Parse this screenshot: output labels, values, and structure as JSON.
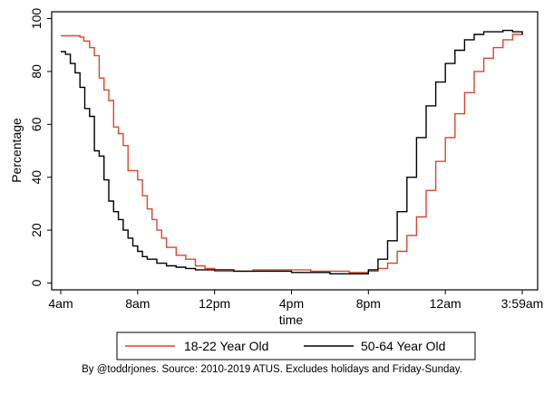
{
  "chart_data": {
    "type": "line",
    "xlabel": "time",
    "ylabel": "Percentage",
    "ylim": [
      0,
      100
    ],
    "x_ticks": [
      "4am",
      "8am",
      "12pm",
      "4pm",
      "8pm",
      "12am",
      "3:59am"
    ],
    "x_tick_hours": [
      0,
      4,
      8,
      12,
      16,
      20,
      24
    ],
    "x_range_hours": [
      0,
      24
    ],
    "y_ticks": [
      0,
      20,
      40,
      60,
      80,
      100
    ],
    "series": [
      {
        "name": "18-22 Year Old",
        "color": "#d9472b",
        "step": true,
        "points": [
          [
            0.0,
            93.5
          ],
          [
            1.0,
            93.0
          ],
          [
            1.2,
            91.5
          ],
          [
            1.5,
            89.0
          ],
          [
            1.75,
            86.0
          ],
          [
            2.0,
            77.5
          ],
          [
            2.25,
            73.0
          ],
          [
            2.5,
            69.0
          ],
          [
            2.75,
            59.0
          ],
          [
            3.0,
            56.5
          ],
          [
            3.25,
            52.0
          ],
          [
            3.5,
            42.5
          ],
          [
            3.75,
            42.5
          ],
          [
            4.0,
            39.0
          ],
          [
            4.25,
            33.0
          ],
          [
            4.5,
            28.0
          ],
          [
            4.75,
            24.0
          ],
          [
            5.0,
            20.0
          ],
          [
            5.25,
            17.0
          ],
          [
            5.5,
            13.5
          ],
          [
            6.0,
            10.5
          ],
          [
            6.5,
            9.0
          ],
          [
            7.0,
            6.5
          ],
          [
            7.5,
            5.5
          ],
          [
            8.0,
            4.5
          ],
          [
            9.0,
            4.5
          ],
          [
            10.0,
            5.0
          ],
          [
            11.0,
            5.0
          ],
          [
            12.0,
            5.0
          ],
          [
            13.0,
            4.5
          ],
          [
            14.0,
            4.5
          ],
          [
            15.0,
            4.0
          ],
          [
            16.0,
            4.5
          ],
          [
            16.5,
            5.5
          ],
          [
            17.0,
            7.5
          ],
          [
            17.5,
            12.0
          ],
          [
            18.0,
            18.0
          ],
          [
            18.5,
            25.0
          ],
          [
            19.0,
            35.0
          ],
          [
            19.5,
            46.0
          ],
          [
            20.0,
            55.0
          ],
          [
            20.5,
            64.0
          ],
          [
            21.0,
            72.0
          ],
          [
            21.5,
            80.0
          ],
          [
            22.0,
            85.0
          ],
          [
            22.5,
            89.0
          ],
          [
            23.0,
            92.0
          ],
          [
            23.5,
            94.0
          ],
          [
            24.0,
            95.0
          ]
        ]
      },
      {
        "name": "50-64 Year Old",
        "color": "#000000",
        "step": true,
        "points": [
          [
            0.0,
            87.5
          ],
          [
            0.25,
            86.5
          ],
          [
            0.5,
            83.0
          ],
          [
            0.75,
            79.5
          ],
          [
            1.0,
            74.0
          ],
          [
            1.25,
            66.0
          ],
          [
            1.5,
            63.0
          ],
          [
            1.75,
            50.0
          ],
          [
            2.0,
            48.0
          ],
          [
            2.25,
            39.0
          ],
          [
            2.5,
            31.0
          ],
          [
            2.75,
            27.0
          ],
          [
            3.0,
            24.0
          ],
          [
            3.25,
            20.0
          ],
          [
            3.5,
            17.0
          ],
          [
            3.75,
            14.0
          ],
          [
            4.0,
            12.0
          ],
          [
            4.25,
            10.0
          ],
          [
            4.5,
            9.0
          ],
          [
            5.0,
            7.5
          ],
          [
            5.5,
            6.5
          ],
          [
            6.0,
            6.0
          ],
          [
            6.5,
            5.5
          ],
          [
            7.0,
            5.0
          ],
          [
            8.0,
            5.0
          ],
          [
            9.0,
            4.5
          ],
          [
            10.0,
            4.5
          ],
          [
            11.0,
            4.5
          ],
          [
            12.0,
            4.0
          ],
          [
            13.0,
            4.0
          ],
          [
            14.0,
            3.5
          ],
          [
            15.0,
            3.5
          ],
          [
            16.0,
            5.0
          ],
          [
            16.5,
            9.0
          ],
          [
            17.0,
            16.0
          ],
          [
            17.5,
            27.0
          ],
          [
            18.0,
            40.0
          ],
          [
            18.5,
            55.0
          ],
          [
            19.0,
            67.0
          ],
          [
            19.5,
            76.0
          ],
          [
            20.0,
            83.0
          ],
          [
            20.5,
            88.0
          ],
          [
            21.0,
            92.0
          ],
          [
            21.5,
            94.0
          ],
          [
            22.0,
            95.0
          ],
          [
            23.0,
            95.5
          ],
          [
            23.5,
            95.0
          ],
          [
            24.0,
            94.0
          ]
        ]
      }
    ]
  },
  "legend": {
    "items": [
      {
        "label": "18-22 Year Old",
        "color": "#d9472b"
      },
      {
        "label": "50-64 Year Old",
        "color": "#000000"
      }
    ]
  },
  "caption": "By @toddrjones. Source: 2010-2019 ATUS. Excludes holidays and Friday-Sunday."
}
